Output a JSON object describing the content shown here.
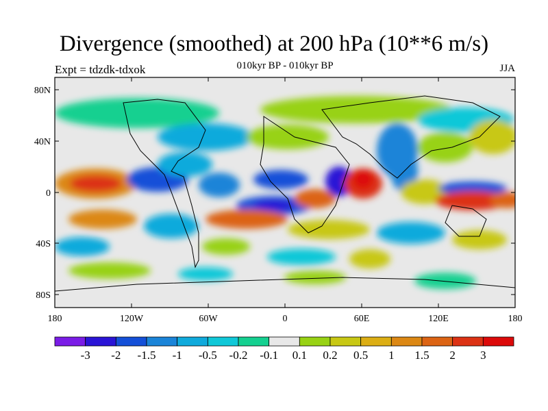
{
  "title": "Divergence (smoothed) at 200 hPa (10**6 m/s)",
  "experiment_label": "Expt = tdzdk-tdxok",
  "period_label": "010kyr BP - 010kyr BP",
  "season_label": "JJA",
  "map": {
    "lat_ticks": [
      "80N",
      "40N",
      "0",
      "40S",
      "80S"
    ],
    "lon_ticks": [
      "180",
      "120W",
      "60W",
      "0",
      "60E",
      "120E",
      "180"
    ],
    "background_color": "#e8e8e8"
  },
  "colorbar": {
    "labels": [
      "-3",
      "-2",
      "-1.5",
      "-1",
      "-0.5",
      "-0.2",
      "-0.1",
      "0.1",
      "0.2",
      "0.5",
      "1",
      "1.5",
      "2",
      "3"
    ],
    "colors": [
      "#7a1ce6",
      "#2a14d6",
      "#1450d8",
      "#1a84d8",
      "#10aadc",
      "#10c8d8",
      "#14d090",
      "#e8e8e8",
      "#98d214",
      "#c8c814",
      "#dcae14",
      "#dc8814",
      "#dc6414",
      "#dc3214",
      "#dc0a0a"
    ]
  }
}
